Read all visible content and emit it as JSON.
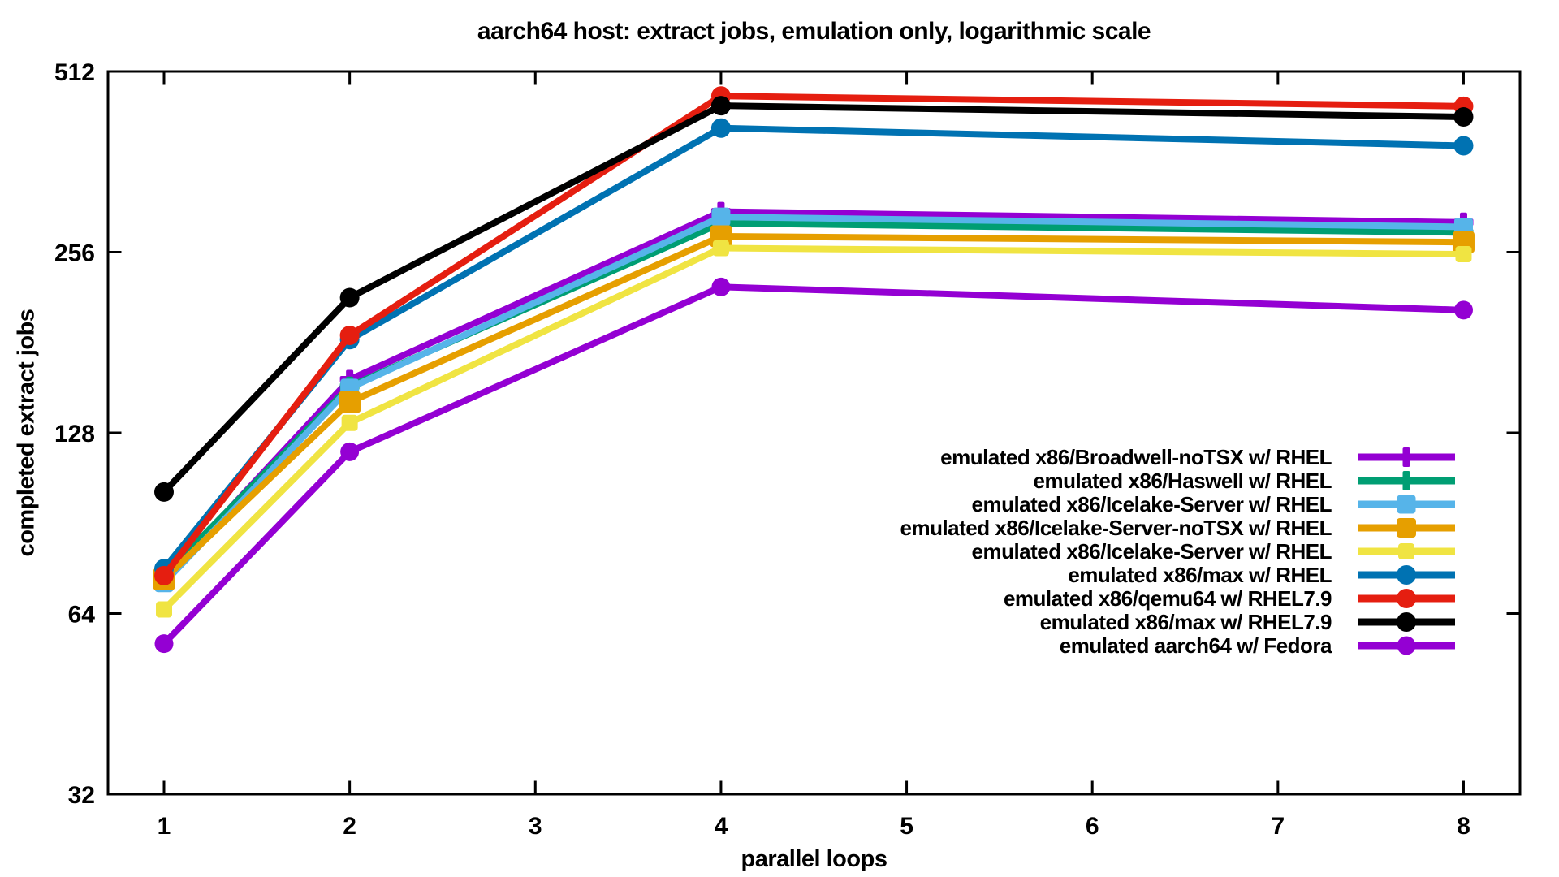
{
  "title": "aarch64 host: extract jobs, emulation only, logarithmic scale",
  "chart_data": {
    "type": "line",
    "title": "aarch64 host: extract jobs, emulation only, logarithmic scale",
    "xlabel": "parallel loops",
    "ylabel": "completed extract jobs",
    "x_scale": "linear",
    "y_scale": "log2",
    "xlim": [
      0.7,
      8.3
    ],
    "ylim": [
      32,
      512
    ],
    "x_ticks": [
      1,
      2,
      3,
      4,
      5,
      6,
      7,
      8
    ],
    "y_ticks": [
      32,
      64,
      128,
      256,
      512
    ],
    "grid": "off",
    "legend_position": "inside-right-middle",
    "x": [
      1,
      2,
      4,
      8
    ],
    "series": [
      {
        "name": "emulated x86/Broadwell-noTSX w/ RHEL",
        "color": "#9400d3",
        "marker": "plus",
        "marker_size": 24,
        "values": [
          73,
          157,
          299,
          287
        ]
      },
      {
        "name": "emulated x86/Haswell w/ RHEL",
        "color": "#009e73",
        "marker": "plus",
        "marker_size": 24,
        "values": [
          74,
          153,
          286,
          276
        ]
      },
      {
        "name": "emulated x86/Icelake-Server w/ RHEL",
        "color": "#56b4e9",
        "marker": "square",
        "marker_size": 23,
        "values": [
          72,
          152,
          293,
          282
        ]
      },
      {
        "name": "emulated x86/Icelake-Server-noTSX w/ RHEL",
        "color": "#e69f00",
        "marker": "square",
        "marker_size": 27,
        "values": [
          73,
          144,
          272,
          266
        ]
      },
      {
        "name": "emulated x86/Icelake-Server w/ RHEL",
        "color": "#f0e442",
        "marker": "square",
        "marker_size": 20,
        "values": [
          65,
          133,
          260,
          254
        ]
      },
      {
        "name": "emulated x86/max w/ RHEL",
        "color": "#0072b2",
        "marker": "circle",
        "marker_size": 23,
        "values": [
          76,
          183,
          412,
          385
        ]
      },
      {
        "name": "emulated x86/qemu64 w/ RHEL7.9",
        "color": "#e51e10",
        "marker": "circle",
        "marker_size": 23,
        "values": [
          74,
          186,
          466,
          448
        ]
      },
      {
        "name": "emulated x86/max w/ RHEL7.9",
        "color": "#000000",
        "marker": "circle",
        "marker_size": 23,
        "values": [
          102,
          215,
          449,
          430
        ]
      },
      {
        "name": "emulated aarch64 w/ Fedora",
        "color": "#9400d3",
        "marker": "circle",
        "marker_size": 22,
        "values": [
          57,
          119,
          224,
          205
        ]
      }
    ]
  }
}
